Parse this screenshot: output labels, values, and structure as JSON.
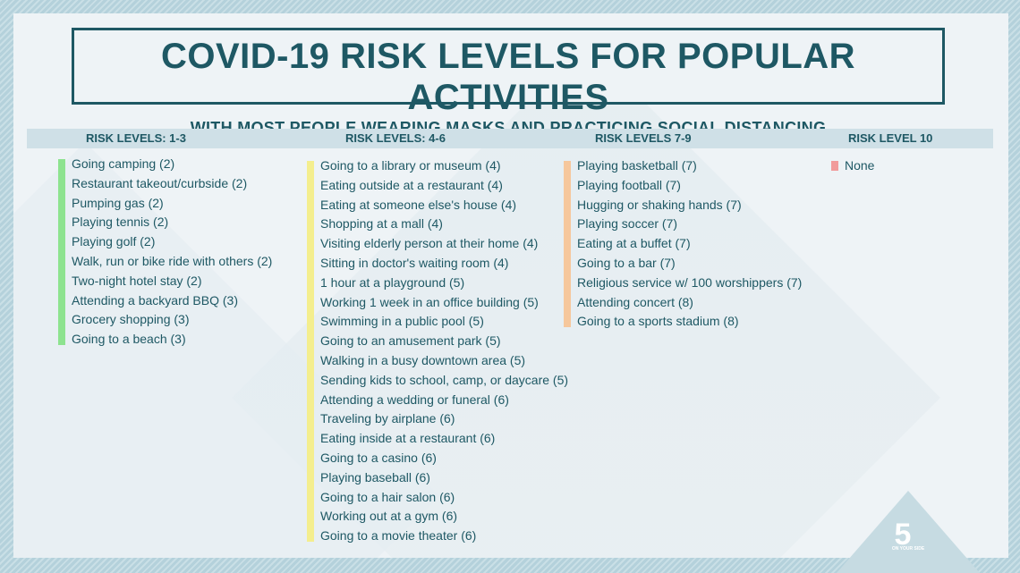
{
  "title": "COVID-19 RISK LEVELS FOR POPULAR ACTIVITIES",
  "subtitle": "WITH MOST PEOPLE WEARING MASKS AND PRACTICING SOCIAL DISTANCING",
  "colors": {
    "low": "#8de38f",
    "medium": "#f4ee8e",
    "high": "#f6c79c",
    "highest": "#f19b9b",
    "text": "#1e5864"
  },
  "columns": [
    {
      "header": "RISK LEVELS: 1-3",
      "items": [
        "Going camping (2)",
        "Restaurant takeout/curbside (2)",
        "Pumping gas (2)",
        "Playing tennis (2)",
        "Playing golf (2)",
        "Walk, run or bike ride with others (2)",
        "Two-night hotel stay (2)",
        "Attending a backyard BBQ (3)",
        "Grocery shopping (3)",
        "Going to a beach (3)"
      ]
    },
    {
      "header": "RISK LEVELS: 4-6",
      "items": [
        "Going to a library or museum (4)",
        "Eating outside at a restaurant (4)",
        "Eating at someone else's house (4)",
        "Shopping at a mall (4)",
        "Visiting elderly person at their home (4)",
        "Sitting in doctor's waiting room (4)",
        "1 hour at a playground (5)",
        "Working 1 week in an office building (5)",
        "Swimming in a public pool (5)",
        "Going to an amusement park (5)",
        "Walking in a busy downtown area (5)",
        "Sending kids to school, camp, or daycare (5)",
        "Attending a wedding or funeral (6)",
        "Traveling by airplane (6)",
        "Eating inside at a restaurant (6)",
        "Going to a casino (6)",
        "Playing baseball (6)",
        "Going to a hair salon (6)",
        "Working out at a gym (6)",
        "Going to a movie theater (6)"
      ]
    },
    {
      "header": "RISK LEVELS 7-9",
      "items": [
        "Playing basketball (7)",
        "Playing football (7)",
        "Hugging or shaking hands (7)",
        "Playing soccer (7)",
        "Eating at a buffet (7)",
        "Going to a bar (7)",
        "Religious service w/ 100 worshippers (7)",
        "Attending concert (8)",
        "Going to a sports stadium (8)"
      ]
    },
    {
      "header": "RISK LEVEL 10",
      "items": [
        "None"
      ]
    }
  ],
  "logo": {
    "number": "5",
    "tagline": "ON YOUR SIDE"
  }
}
